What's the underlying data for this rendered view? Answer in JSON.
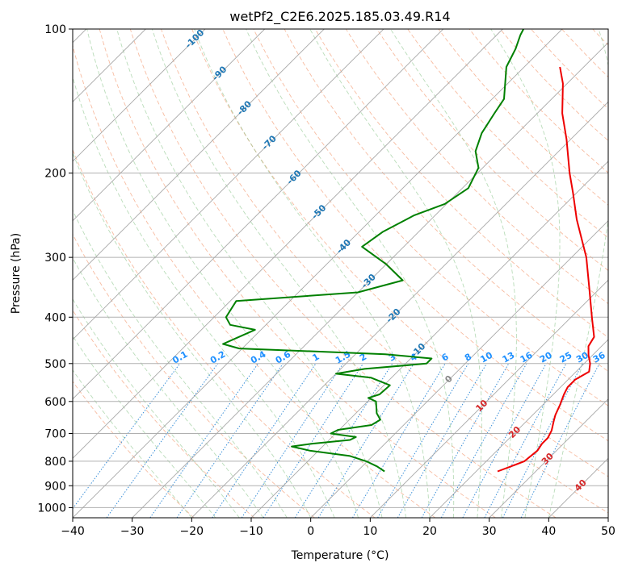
{
  "chart_data": {
    "type": "skew-t",
    "title": "wetPf2_C2E6.2025.185.03.49.R14",
    "xlabel": "Temperature (°C)",
    "ylabel": "Pressure (hPa)",
    "xlim": [
      -40,
      50
    ],
    "ylim": [
      1050,
      100
    ],
    "x_scale": "linear (skewed isotherms)",
    "y_scale": "log",
    "grid": true,
    "x_ticks": [
      -40,
      -30,
      -20,
      -10,
      0,
      10,
      20,
      30,
      40,
      50
    ],
    "y_ticks": [
      100,
      200,
      300,
      400,
      500,
      600,
      700,
      800,
      900,
      1000
    ],
    "isotherm_labels": [
      "-100",
      "-90",
      "-80",
      "-70",
      "-60",
      "-50",
      "-40",
      "-30",
      "-20",
      "-10",
      "0",
      "10",
      "20",
      "30",
      "40"
    ],
    "mixing_ratio_labels": [
      "0.1",
      "0.2",
      "0.4",
      "0.6",
      "1",
      "1.5",
      "2",
      "3",
      "4",
      "6",
      "8",
      "10",
      "13",
      "16",
      "20",
      "25",
      "30",
      "36"
    ],
    "series": [
      {
        "color": "#ee0000",
        "points": [
          {
            "p": 840,
            "t": 23.6
          },
          {
            "p": 820,
            "t": 25.0
          },
          {
            "p": 800,
            "t": 26.4
          },
          {
            "p": 760,
            "t": 26.8
          },
          {
            "p": 735,
            "t": 26.4
          },
          {
            "p": 715,
            "t": 26.4
          },
          {
            "p": 690,
            "t": 25.8
          },
          {
            "p": 660,
            "t": 24.6
          },
          {
            "p": 640,
            "t": 23.8
          },
          {
            "p": 610,
            "t": 22.9
          },
          {
            "p": 580,
            "t": 21.8
          },
          {
            "p": 560,
            "t": 21.2
          },
          {
            "p": 540,
            "t": 21.2
          },
          {
            "p": 520,
            "t": 22.2
          },
          {
            "p": 500,
            "t": 21.0
          },
          {
            "p": 480,
            "t": 19.3
          },
          {
            "p": 460,
            "t": 17.8
          },
          {
            "p": 440,
            "t": 17.2
          },
          {
            "p": 400,
            "t": 13.5
          },
          {
            "p": 350,
            "t": 8.4
          },
          {
            "p": 300,
            "t": 2.5
          },
          {
            "p": 250,
            "t": -5.5
          },
          {
            "p": 220,
            "t": -10.6
          },
          {
            "p": 200,
            "t": -14.5
          },
          {
            "p": 170,
            "t": -20.7
          },
          {
            "p": 150,
            "t": -25.8
          },
          {
            "p": 130,
            "t": -30.7
          },
          {
            "p": 120,
            "t": -34.0
          }
        ]
      },
      {
        "color": "#008000",
        "points": [
          {
            "p": 840,
            "t": 4.6
          },
          {
            "p": 820,
            "t": 2.5
          },
          {
            "p": 800,
            "t": -0.2
          },
          {
            "p": 780,
            "t": -3.8
          },
          {
            "p": 760,
            "t": -11.5
          },
          {
            "p": 745,
            "t": -15.2
          },
          {
            "p": 735,
            "t": -12.2
          },
          {
            "p": 722,
            "t": -6.5
          },
          {
            "p": 712,
            "t": -6.0
          },
          {
            "p": 700,
            "t": -10.8
          },
          {
            "p": 688,
            "t": -10.2
          },
          {
            "p": 672,
            "t": -5.4
          },
          {
            "p": 655,
            "t": -4.8
          },
          {
            "p": 635,
            "t": -6.5
          },
          {
            "p": 600,
            "t": -8.6
          },
          {
            "p": 590,
            "t": -10.5
          },
          {
            "p": 580,
            "t": -9.2
          },
          {
            "p": 555,
            "t": -9.0
          },
          {
            "p": 535,
            "t": -13.5
          },
          {
            "p": 525,
            "t": -20.0
          },
          {
            "p": 513,
            "t": -16.0
          },
          {
            "p": 500,
            "t": -6.5
          },
          {
            "p": 488,
            "t": -6.5
          },
          {
            "p": 478,
            "t": -15.0
          },
          {
            "p": 465,
            "t": -40.5
          },
          {
            "p": 455,
            "t": -44.0
          },
          {
            "p": 440,
            "t": -42.5
          },
          {
            "p": 425,
            "t": -41.0
          },
          {
            "p": 415,
            "t": -46.0
          },
          {
            "p": 400,
            "t": -48.0
          },
          {
            "p": 370,
            "t": -49.0
          },
          {
            "p": 355,
            "t": -30.0
          },
          {
            "p": 335,
            "t": -24.5
          },
          {
            "p": 310,
            "t": -30.0
          },
          {
            "p": 285,
            "t": -37.0
          },
          {
            "p": 265,
            "t": -36.0
          },
          {
            "p": 245,
            "t": -33.5
          },
          {
            "p": 232,
            "t": -30.3
          },
          {
            "p": 215,
            "t": -29.0
          },
          {
            "p": 195,
            "t": -30.7
          },
          {
            "p": 180,
            "t": -34.0
          },
          {
            "p": 165,
            "t": -36.0
          },
          {
            "p": 150,
            "t": -37.2
          },
          {
            "p": 140,
            "t": -38.0
          },
          {
            "p": 120,
            "t": -43.0
          },
          {
            "p": 110,
            "t": -44.5
          },
          {
            "p": 103,
            "t": -46.0
          },
          {
            "p": 100,
            "t": -46.5
          }
        ]
      }
    ]
  }
}
